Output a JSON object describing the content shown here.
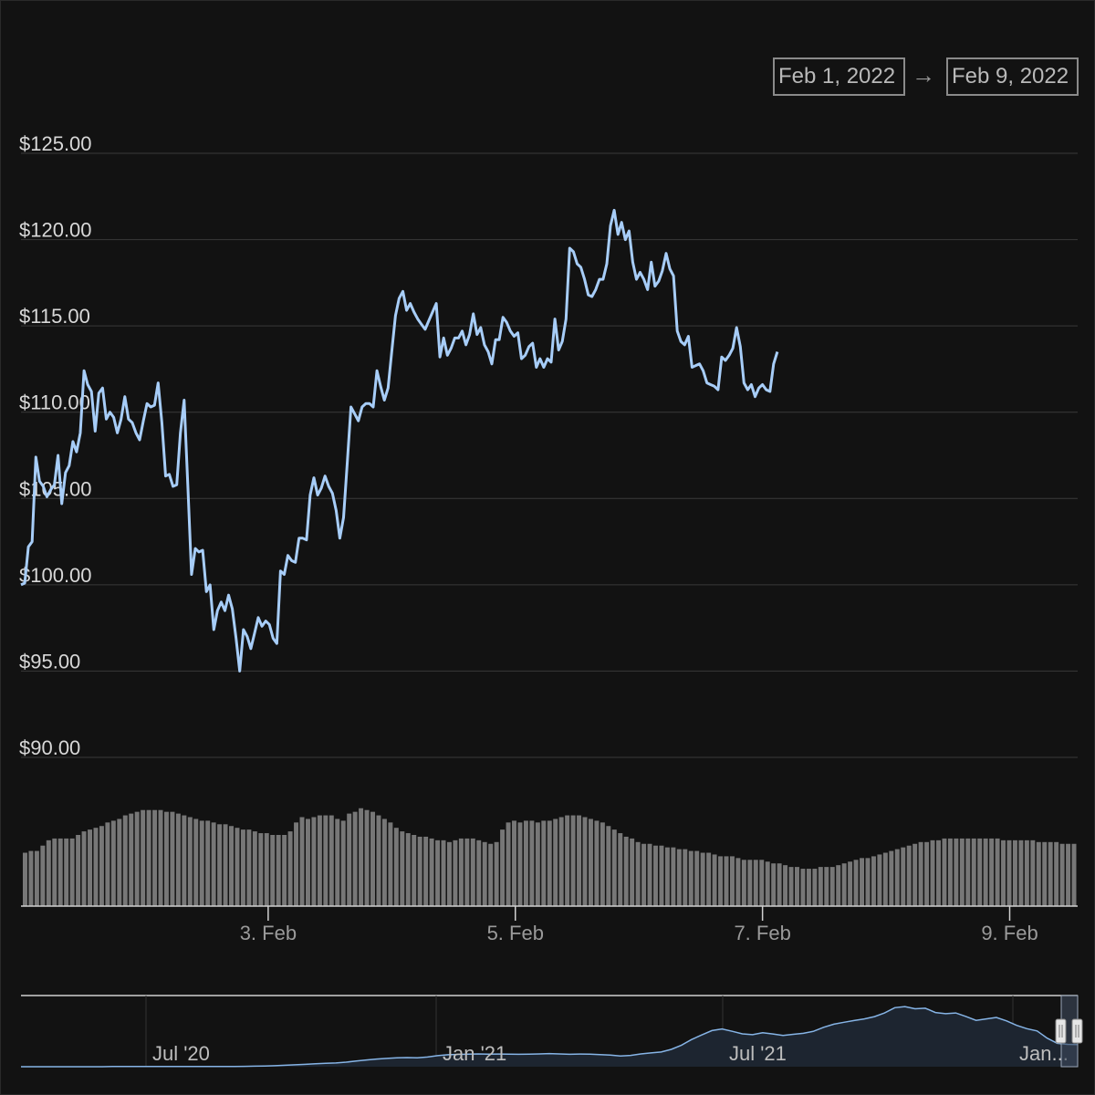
{
  "range": {
    "from": "Feb 1, 2022",
    "arrow": "→",
    "to": "Feb 9, 2022"
  },
  "colors": {
    "price_line": "#a7cdf8",
    "volume_bar": "#777777",
    "grid": "#3a3a3a",
    "navigator_line": "#86b4e6"
  },
  "chart_data": {
    "type": "line",
    "title": "",
    "xlabel": "",
    "ylabel": "",
    "ylim": [
      90,
      125
    ],
    "y_tick_labels": [
      "$125.00",
      "$120.00",
      "$115.00",
      "$110.00",
      "$105.00",
      "$100.00",
      "$95.00",
      "$90.00"
    ],
    "y_ticks": [
      125,
      120,
      115,
      110,
      105,
      100,
      95,
      90
    ],
    "x_range_days": [
      1.0,
      9.55
    ],
    "x_tick_labels": [
      "3. Feb",
      "5. Feb",
      "7. Feb",
      "9. Feb"
    ],
    "x_ticks": [
      3,
      5,
      7,
      9
    ],
    "grid": true,
    "series": [
      {
        "values": [
          [
            1.0,
            100.0
          ],
          [
            1.03,
            100.1
          ],
          [
            1.06,
            102.2
          ],
          [
            1.09,
            102.5
          ],
          [
            1.12,
            107.4
          ],
          [
            1.15,
            106.0
          ],
          [
            1.18,
            105.7
          ],
          [
            1.21,
            105.1
          ],
          [
            1.24,
            105.5
          ],
          [
            1.27,
            105.8
          ],
          [
            1.3,
            107.5
          ],
          [
            1.33,
            104.7
          ],
          [
            1.36,
            106.5
          ],
          [
            1.39,
            106.9
          ],
          [
            1.42,
            108.3
          ],
          [
            1.45,
            107.7
          ],
          [
            1.48,
            108.8
          ],
          [
            1.51,
            112.4
          ],
          [
            1.54,
            111.6
          ],
          [
            1.57,
            111.2
          ],
          [
            1.6,
            108.9
          ],
          [
            1.63,
            111.1
          ],
          [
            1.66,
            111.4
          ],
          [
            1.69,
            109.6
          ],
          [
            1.72,
            110.0
          ],
          [
            1.75,
            109.7
          ],
          [
            1.78,
            108.8
          ],
          [
            1.81,
            109.6
          ],
          [
            1.84,
            110.9
          ],
          [
            1.87,
            109.6
          ],
          [
            1.9,
            109.4
          ],
          [
            1.93,
            108.8
          ],
          [
            1.96,
            108.4
          ],
          [
            1.99,
            109.5
          ],
          [
            2.02,
            110.5
          ],
          [
            2.05,
            110.3
          ],
          [
            2.08,
            110.4
          ],
          [
            2.11,
            111.7
          ],
          [
            2.14,
            109.4
          ],
          [
            2.17,
            106.3
          ],
          [
            2.2,
            106.4
          ],
          [
            2.23,
            105.7
          ],
          [
            2.26,
            105.8
          ],
          [
            2.29,
            108.8
          ],
          [
            2.32,
            110.7
          ],
          [
            2.35,
            105.8
          ],
          [
            2.38,
            100.6
          ],
          [
            2.41,
            102.1
          ],
          [
            2.44,
            101.9
          ],
          [
            2.47,
            102.0
          ],
          [
            2.5,
            99.6
          ],
          [
            2.53,
            100.0
          ],
          [
            2.56,
            97.4
          ],
          [
            2.59,
            98.5
          ],
          [
            2.62,
            99.0
          ],
          [
            2.65,
            98.5
          ],
          [
            2.68,
            99.4
          ],
          [
            2.71,
            98.6
          ],
          [
            2.74,
            96.9
          ],
          [
            2.77,
            95.0
          ],
          [
            2.8,
            97.4
          ],
          [
            2.83,
            97.0
          ],
          [
            2.86,
            96.3
          ],
          [
            2.89,
            97.2
          ],
          [
            2.92,
            98.1
          ],
          [
            2.95,
            97.6
          ],
          [
            2.98,
            97.9
          ],
          [
            3.01,
            97.7
          ],
          [
            3.04,
            96.9
          ],
          [
            3.07,
            96.6
          ],
          [
            3.1,
            100.8
          ],
          [
            3.13,
            100.6
          ],
          [
            3.16,
            101.7
          ],
          [
            3.19,
            101.4
          ],
          [
            3.22,
            101.3
          ],
          [
            3.25,
            102.7
          ],
          [
            3.28,
            102.7
          ],
          [
            3.31,
            102.6
          ],
          [
            3.34,
            105.2
          ],
          [
            3.37,
            106.2
          ],
          [
            3.4,
            105.2
          ],
          [
            3.43,
            105.6
          ],
          [
            3.46,
            106.3
          ],
          [
            3.49,
            105.7
          ],
          [
            3.52,
            105.3
          ],
          [
            3.55,
            104.3
          ],
          [
            3.58,
            102.7
          ],
          [
            3.61,
            103.9
          ],
          [
            3.64,
            107.1
          ],
          [
            3.67,
            110.3
          ],
          [
            3.7,
            109.9
          ],
          [
            3.73,
            109.5
          ],
          [
            3.76,
            110.3
          ],
          [
            3.79,
            110.5
          ],
          [
            3.82,
            110.5
          ],
          [
            3.85,
            110.3
          ],
          [
            3.88,
            112.4
          ],
          [
            3.91,
            111.5
          ],
          [
            3.94,
            110.7
          ],
          [
            3.97,
            111.4
          ],
          [
            4.0,
            113.5
          ],
          [
            4.03,
            115.6
          ],
          [
            4.06,
            116.6
          ],
          [
            4.09,
            117.0
          ],
          [
            4.12,
            115.9
          ],
          [
            4.15,
            116.3
          ],
          [
            4.18,
            115.8
          ],
          [
            4.21,
            115.4
          ],
          [
            4.24,
            115.1
          ],
          [
            4.27,
            114.8
          ],
          [
            4.3,
            115.3
          ],
          [
            4.33,
            115.8
          ],
          [
            4.36,
            116.3
          ],
          [
            4.39,
            113.2
          ],
          [
            4.42,
            114.3
          ],
          [
            4.45,
            113.3
          ],
          [
            4.48,
            113.7
          ],
          [
            4.51,
            114.3
          ],
          [
            4.54,
            114.3
          ],
          [
            4.57,
            114.7
          ],
          [
            4.6,
            113.9
          ],
          [
            4.63,
            114.5
          ],
          [
            4.66,
            115.7
          ],
          [
            4.69,
            114.5
          ],
          [
            4.72,
            114.9
          ],
          [
            4.75,
            113.9
          ],
          [
            4.78,
            113.5
          ],
          [
            4.81,
            112.8
          ],
          [
            4.84,
            114.2
          ],
          [
            4.87,
            114.2
          ],
          [
            4.9,
            115.5
          ],
          [
            4.93,
            115.2
          ],
          [
            4.96,
            114.7
          ],
          [
            4.99,
            114.4
          ],
          [
            5.02,
            114.6
          ],
          [
            5.05,
            113.1
          ],
          [
            5.08,
            113.3
          ],
          [
            5.11,
            113.8
          ],
          [
            5.14,
            114.0
          ],
          [
            5.17,
            112.6
          ],
          [
            5.2,
            113.1
          ],
          [
            5.23,
            112.6
          ],
          [
            5.26,
            113.1
          ],
          [
            5.29,
            112.9
          ],
          [
            5.32,
            115.4
          ],
          [
            5.35,
            113.6
          ],
          [
            5.38,
            114.1
          ],
          [
            5.41,
            115.4
          ],
          [
            5.44,
            119.5
          ],
          [
            5.47,
            119.3
          ],
          [
            5.5,
            118.6
          ],
          [
            5.53,
            118.4
          ],
          [
            5.56,
            117.7
          ],
          [
            5.59,
            116.8
          ],
          [
            5.62,
            116.7
          ],
          [
            5.65,
            117.1
          ],
          [
            5.68,
            117.7
          ],
          [
            5.71,
            117.7
          ],
          [
            5.74,
            118.6
          ],
          [
            5.77,
            120.8
          ],
          [
            5.8,
            121.7
          ],
          [
            5.83,
            120.3
          ],
          [
            5.86,
            121.0
          ],
          [
            5.89,
            120.0
          ],
          [
            5.92,
            120.5
          ],
          [
            5.95,
            118.7
          ],
          [
            5.98,
            117.7
          ],
          [
            6.01,
            118.1
          ],
          [
            6.04,
            117.7
          ],
          [
            6.07,
            117.1
          ],
          [
            6.1,
            118.7
          ],
          [
            6.13,
            117.3
          ],
          [
            6.16,
            117.6
          ],
          [
            6.19,
            118.2
          ],
          [
            6.22,
            119.2
          ],
          [
            6.25,
            118.3
          ],
          [
            6.28,
            117.9
          ],
          [
            6.31,
            114.7
          ],
          [
            6.34,
            114.1
          ],
          [
            6.37,
            113.9
          ],
          [
            6.4,
            114.4
          ],
          [
            6.43,
            112.6
          ],
          [
            6.46,
            112.7
          ],
          [
            6.49,
            112.8
          ],
          [
            6.52,
            112.4
          ],
          [
            6.55,
            111.7
          ],
          [
            6.58,
            111.6
          ],
          [
            6.61,
            111.5
          ],
          [
            6.64,
            111.3
          ],
          [
            6.67,
            113.2
          ],
          [
            6.7,
            113.0
          ],
          [
            6.73,
            113.3
          ],
          [
            6.76,
            113.7
          ],
          [
            6.79,
            114.9
          ],
          [
            6.82,
            113.8
          ],
          [
            6.85,
            111.7
          ],
          [
            6.88,
            111.3
          ],
          [
            6.91,
            111.6
          ],
          [
            6.94,
            110.9
          ],
          [
            6.97,
            111.4
          ],
          [
            7.0,
            111.6
          ],
          [
            7.03,
            111.3
          ],
          [
            7.06,
            111.2
          ],
          [
            7.09,
            112.8
          ],
          [
            7.12,
            113.5
          ]
        ]
      }
    ],
    "volume_values": [
      30,
      31,
      31,
      34,
      37,
      38,
      38,
      38,
      38,
      40,
      42,
      43,
      44,
      45,
      47,
      48,
      49,
      51,
      52,
      53,
      54,
      54,
      54,
      54,
      53,
      53,
      52,
      51,
      50,
      49,
      48,
      48,
      47,
      46,
      46,
      45,
      44,
      43,
      43,
      42,
      41,
      41,
      40,
      40,
      40,
      42,
      47,
      50,
      49,
      50,
      51,
      51,
      51,
      49,
      48,
      52,
      53,
      55,
      54,
      53,
      51,
      49,
      47,
      44,
      42,
      41,
      40,
      39,
      39,
      38,
      37,
      37,
      36,
      37,
      38,
      38,
      38,
      37,
      36,
      35,
      36,
      43,
      47,
      48,
      47,
      48,
      48,
      47,
      48,
      48,
      49,
      50,
      51,
      51,
      51,
      50,
      49,
      48,
      47,
      45,
      43,
      41,
      39,
      38,
      36,
      35,
      35,
      34,
      34,
      33,
      33,
      32,
      32,
      31,
      31,
      30,
      30,
      29,
      28,
      28,
      28,
      27,
      26,
      26,
      26,
      26,
      25,
      24,
      24,
      23,
      22,
      22,
      21,
      21,
      21,
      22,
      22,
      22,
      23,
      24,
      25,
      26,
      27,
      27,
      28,
      29,
      30,
      31,
      32,
      33,
      34,
      35,
      36,
      36,
      37,
      37,
      38,
      38,
      38,
      38,
      38,
      38,
      38,
      38,
      38,
      38,
      37,
      37,
      37,
      37,
      37,
      37,
      36,
      36,
      36,
      36,
      35,
      35,
      35
    ],
    "navigator": {
      "x_tick_labels": [
        "Jul '20",
        "Jan '21",
        "Jul '21",
        "Jan..."
      ],
      "values": [
        0,
        0,
        0,
        0,
        0,
        0,
        0,
        0,
        0,
        0.2,
        0.3,
        0.3,
        0.2,
        0.2,
        0.2,
        0.2,
        0.2,
        0.2,
        0.2,
        0.2,
        0.2,
        0.3,
        0.4,
        0.6,
        0.9,
        1.2,
        1.7,
        2.2,
        2.8,
        3.4,
        3.9,
        4.4,
        5.3,
        6.6,
        7.8,
        8.9,
        9.7,
        10.3,
        10.6,
        10.4,
        11.2,
        12.8,
        13.9,
        14.3,
        14.5,
        14.8,
        14.6,
        14.7,
        14.6,
        14.4,
        14.5,
        14.9,
        15.3,
        14.9,
        14.4,
        14.7,
        14.6,
        14.1,
        13.6,
        12.5,
        13.1,
        14.8,
        16.0,
        17.1,
        20.2,
        25.0,
        31.6,
        36.9,
        42.0,
        43.9,
        41.1,
        38.2,
        37.2,
        39.5,
        38.1,
        36.3,
        37.7,
        38.8,
        41.2,
        45.8,
        49.4,
        51.7,
        53.7,
        55.6,
        58.2,
        62.5,
        68.6,
        69.9,
        67.3,
        68.0,
        63.0,
        61.6,
        62.5,
        58.4,
        53.9,
        55.6,
        57.3,
        53.2,
        48.0,
        44.2,
        41.6,
        33.2,
        27.1,
        26.0,
        25.8
      ]
    }
  }
}
